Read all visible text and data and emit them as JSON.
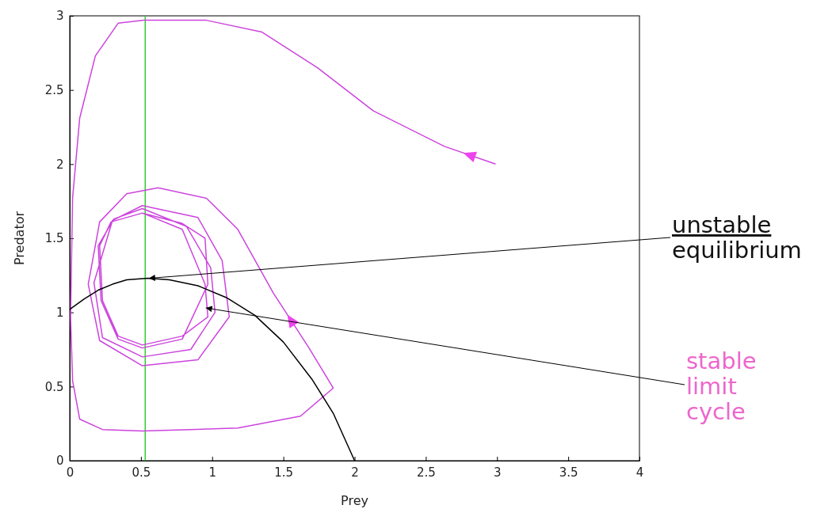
{
  "chart_data": {
    "type": "line",
    "xlabel": "Prey",
    "ylabel": "Predator",
    "xlim": [
      0,
      4
    ],
    "ylim": [
      0,
      3
    ],
    "xticks": [
      0,
      0.5,
      1,
      1.5,
      2,
      2.5,
      3,
      3.5,
      4
    ],
    "yticks": [
      0,
      0.5,
      1,
      1.5,
      2,
      2.5,
      3
    ],
    "grid": false,
    "marker": "none",
    "line_style": "solid",
    "series": [
      {
        "color": "#cc44dd",
        "x": [
          2.99,
          2.63,
          2.13,
          1.74,
          1.35,
          0.96,
          0.52,
          0.34,
          0.18,
          0.07,
          0.02,
          0.006,
          0.02,
          0.07,
          0.23,
          0.51,
          1.18,
          1.62,
          1.85,
          1.68,
          1.43,
          1.18,
          0.96,
          0.62,
          0.4,
          0.21,
          0.13,
          0.21,
          0.51,
          0.9,
          1.12,
          1.07,
          0.9,
          0.51,
          0.3,
          0.17,
          0.23,
          0.51,
          0.85,
          1.02,
          0.99,
          0.82,
          0.51,
          0.31,
          0.2,
          0.22,
          0.34,
          0.51,
          0.79,
          0.97,
          0.95,
          0.79,
          0.51,
          0.29,
          0.21,
          0.23,
          0.34,
          0.51,
          0.79,
          0.97,
          0.95,
          0.79,
          0.51,
          0.29,
          0.21,
          0.23,
          0.34,
          0.51
        ],
        "values": [
          2.0,
          2.12,
          2.36,
          2.65,
          2.89,
          2.97,
          2.97,
          2.95,
          2.73,
          2.31,
          1.77,
          0.97,
          0.54,
          0.28,
          0.21,
          0.2,
          0.22,
          0.3,
          0.49,
          0.76,
          1.13,
          1.56,
          1.77,
          1.84,
          1.8,
          1.61,
          1.19,
          0.81,
          0.64,
          0.68,
          0.97,
          1.35,
          1.64,
          1.72,
          1.62,
          1.2,
          0.83,
          0.7,
          0.75,
          1.0,
          1.3,
          1.58,
          1.7,
          1.63,
          1.45,
          1.08,
          0.82,
          0.76,
          0.82,
          1.19,
          1.5,
          1.6,
          1.67,
          1.61,
          1.45,
          1.08,
          0.84,
          0.78,
          0.84,
          0.97,
          1.19,
          1.56,
          1.67,
          1.61,
          1.45,
          1.08,
          0.84,
          0.78
        ]
      },
      {
        "color": "#000000",
        "x": [
          0,
          0.1,
          0.2,
          0.3,
          0.4,
          0.55,
          0.7,
          0.9,
          1.1,
          1.3,
          1.5,
          1.7,
          1.85,
          2.0
        ],
        "values": [
          1.02,
          1.09,
          1.15,
          1.19,
          1.22,
          1.23,
          1.22,
          1.18,
          1.1,
          0.98,
          0.8,
          0.55,
          0.32,
          0.0
        ]
      }
    ],
    "ref_lines": [
      {
        "axis": "x",
        "value": 0.53,
        "color": "#33cc33"
      }
    ],
    "annotations": [
      {
        "text": "unstable equilibrium",
        "x": 0.55,
        "y": 1.23
      },
      {
        "text": "stable limit cycle",
        "x": 0.95,
        "y": 1.03
      }
    ]
  }
}
